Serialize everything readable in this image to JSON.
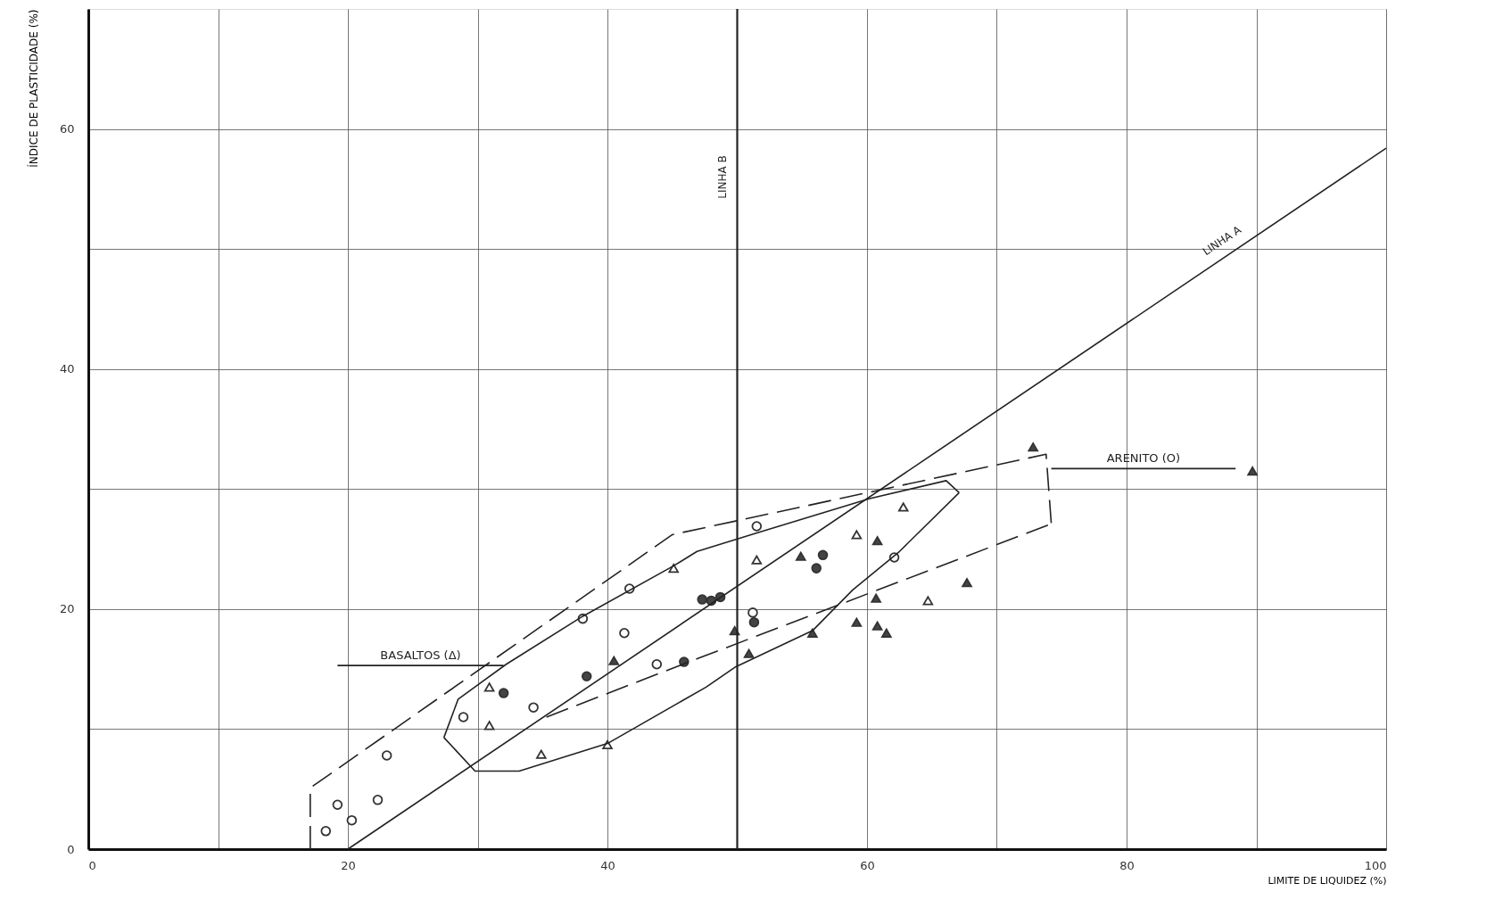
{
  "chart_data": {
    "type": "scatter",
    "xlabel": "LIMITE DE LIQUIDEZ (%)",
    "ylabel": "ÍNDICE DE PLASTICIDADE (%)",
    "xlim": [
      0,
      100
    ],
    "ylim": [
      0,
      70
    ],
    "xticks": [
      0,
      {
        "value": 10,
        "label": null
      },
      20,
      {
        "value": 30,
        "label": null
      },
      40,
      60,
      {
        "value": 70,
        "label": null
      },
      80,
      {
        "value": 90,
        "label": null
      },
      100
    ],
    "yticks": [
      0,
      {
        "value": 10,
        "label": null
      },
      20,
      {
        "value": 30,
        "label": null
      },
      40,
      {
        "value": 50,
        "label": null
      },
      60
    ],
    "grid": true,
    "series": [
      {
        "marker": "circle",
        "color": "#ffffff",
        "x": [
          18.3,
          19.2,
          20.3,
          22.3,
          23.0,
          28.9,
          34.3,
          38.1,
          41.3,
          41.7,
          43.8,
          51.5,
          51.2,
          62.1
        ],
        "values": [
          1.5,
          3.7,
          2.4,
          4.1,
          7.8,
          11.0,
          11.8,
          19.2,
          18.0,
          21.7,
          15.4,
          26.9,
          19.7,
          24.3
        ]
      },
      {
        "marker": "circle",
        "color": "#444444",
        "x": [
          32.0,
          38.4,
          45.9,
          47.3,
          48.0,
          48.7,
          51.3,
          56.1,
          56.6
        ],
        "values": [
          13.0,
          14.4,
          15.6,
          20.8,
          20.7,
          21.0,
          18.9,
          23.4,
          24.5
        ]
      },
      {
        "marker": "triangle",
        "color": "#ffffff",
        "x": [
          30.9,
          30.9,
          34.9,
          40.0,
          45.1,
          51.5,
          59.2,
          62.8,
          64.7
        ],
        "values": [
          13.5,
          10.3,
          7.9,
          8.7,
          23.4,
          24.1,
          26.2,
          28.5,
          20.7
        ]
      },
      {
        "marker": "triangle",
        "color": "#444444",
        "x": [
          40.5,
          49.8,
          50.9,
          54.9,
          55.8,
          59.2,
          60.7,
          60.8,
          60.8,
          61.5,
          67.7,
          72.8,
          89.7
        ],
        "values": [
          15.7,
          18.2,
          16.3,
          24.4,
          18.0,
          18.9,
          20.9,
          25.7,
          18.6,
          18.0,
          22.2,
          33.5,
          31.5
        ]
      },
      {
        "type": "line",
        "name": "LINHA A",
        "line_style": "solid",
        "color": "#222222",
        "x": [
          20,
          100
        ],
        "values": [
          0,
          58.4
        ]
      },
      {
        "type": "line",
        "line_style": "dashed",
        "color": "#222222",
        "x": [
          17.1,
          17.1,
          45.0,
          73.8,
          74.2
        ],
        "values": [
          0,
          5.1,
          26.2,
          32.9,
          27.1
        ]
      },
      {
        "type": "line",
        "line_style": "dashed",
        "color": "#222222",
        "x": [
          35.3,
          47.0,
          74.2
        ],
        "values": [
          11.0,
          15.9,
          27.1
        ]
      },
      {
        "type": "line",
        "line_style": "solid",
        "color": "#222222",
        "x": [
          27.4,
          28.5,
          32.2,
          38.1,
          45.1,
          46.9,
          51.4,
          60.2,
          66.1,
          67.1
        ],
        "values": [
          9.3,
          12.5,
          15.4,
          19.4,
          23.6,
          24.8,
          26.3,
          29.2,
          30.7,
          29.7
        ]
      },
      {
        "type": "line",
        "line_style": "solid",
        "color": "#222222",
        "x": [
          27.4,
          29.8,
          33.2,
          40.0,
          47.6,
          49.9,
          55.8,
          58.9,
          62.5,
          67.1
        ],
        "values": [
          9.3,
          6.5,
          6.5,
          8.8,
          13.5,
          15.2,
          18.2,
          21.6,
          24.8,
          29.7
        ]
      },
      {
        "type": "line",
        "line_style": "solid",
        "color": "#222222",
        "x": [
          19.2,
          32.0
        ],
        "values": [
          15.3,
          15.3
        ]
      },
      {
        "type": "line",
        "line_style": "solid",
        "color": "#222222",
        "x": [
          74.2,
          88.4
        ],
        "values": [
          31.7,
          31.7
        ]
      }
    ],
    "ref_lines": [
      {
        "axis": "x",
        "value": 50,
        "label": "LINHA B",
        "color": "#222222"
      }
    ],
    "annotations": [
      {
        "text": "BASALTOS (Δ)",
        "x": 25.6,
        "y": 15.3
      },
      {
        "text": "ARENITO (O)",
        "x": 81.3,
        "y": 31.7
      }
    ]
  }
}
